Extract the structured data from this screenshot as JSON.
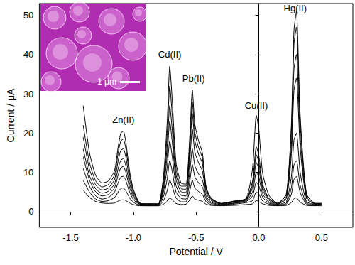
{
  "chart_data": {
    "type": "line",
    "xlabel": "Potential / V",
    "ylabel": "Current / μA",
    "xlim": [
      -1.75,
      0.75
    ],
    "ylim": [
      -4,
      53
    ],
    "xticks": [
      -1.5,
      {
        "value": -1,
        "label": "-1.0"
      },
      -0.5,
      {
        "value": 0,
        "label": "0.0"
      },
      0.5
    ],
    "yticks": [
      0,
      10,
      20,
      30,
      40,
      50
    ],
    "grid": false,
    "marker": "none",
    "line_style": "solid",
    "x": [
      -1.4,
      -1.35,
      -1.3,
      -1.25,
      -1.2,
      -1.15,
      -1.12,
      -1.1,
      -1.08,
      -1.06,
      -1.03,
      -1.0,
      -0.95,
      -0.9,
      -0.85,
      -0.8,
      -0.76,
      -0.73,
      -0.71,
      -0.69,
      -0.66,
      -0.62,
      -0.58,
      -0.55,
      -0.53,
      -0.51,
      -0.48,
      -0.45,
      -0.42,
      -0.38,
      -0.3,
      -0.2,
      -0.1,
      -0.05,
      -0.02,
      0.0,
      0.03,
      0.08,
      0.15,
      0.22,
      0.26,
      0.28,
      0.3,
      0.33,
      0.38,
      0.45,
      0.5
    ],
    "series": [
      {
        "color": "#000000",
        "values": [
          5.5,
          3.6,
          2.6,
          2.2,
          2.1,
          2.2,
          2.7,
          2.95,
          3.0,
          2.8,
          2.2,
          1.8,
          1.5,
          1.5,
          1.5,
          1.5,
          1.9,
          2.7,
          3.5,
          3.0,
          2.1,
          1.8,
          1.9,
          3.0,
          4.0,
          3.2,
          2.9,
          2.6,
          1.9,
          1.6,
          1.5,
          1.6,
          1.8,
          2.0,
          2.8,
          2.6,
          2.0,
          1.6,
          1.5,
          1.6,
          2.3,
          3.3,
          3.5,
          2.4,
          1.6,
          1.5,
          1.5
        ]
      },
      {
        "color": "#000000",
        "values": [
          8,
          5,
          3.2,
          2.6,
          2.8,
          3.6,
          5.1,
          5.9,
          6.0,
          5.3,
          3.5,
          2.4,
          1.6,
          1.5,
          1.5,
          1.5,
          2.8,
          5.4,
          8.0,
          6.4,
          3.5,
          2.5,
          2.5,
          5.4,
          8.0,
          6.0,
          5.1,
          4.4,
          2.5,
          1.8,
          1.6,
          1.9,
          2.3,
          2.8,
          5.0,
          4.5,
          2.7,
          1.9,
          1.6,
          1.9,
          4.5,
          8.2,
          9.0,
          4.9,
          1.9,
          1.6,
          1.6
        ]
      },
      {
        "color": "#000000",
        "values": [
          11,
          6.5,
          4,
          3.2,
          3.6,
          5,
          7.5,
          8.8,
          9,
          7.9,
          5,
          3.1,
          1.8,
          1.6,
          1.6,
          1.6,
          3.9,
          8.4,
          13,
          10.2,
          5,
          3.4,
          3.2,
          7.8,
          12,
          8.9,
          7.3,
          6.3,
          3.2,
          2.1,
          1.7,
          2.1,
          2.6,
          4.0,
          7.5,
          6.6,
          3.7,
          2.2,
          1.7,
          2.2,
          6.2,
          11.9,
          13,
          6.7,
          2.2,
          1.7,
          1.7
        ]
      },
      {
        "color": "#000000",
        "values": [
          14,
          8,
          5,
          4,
          4.4,
          6.1,
          9.5,
          11.2,
          11.5,
          10,
          6.1,
          3.7,
          1.9,
          1.7,
          1.7,
          1.7,
          5,
          11.5,
          18,
          14,
          6.6,
          4.2,
          4,
          10.3,
          16,
          11.7,
          9.6,
          8.1,
          3.9,
          2.4,
          1.8,
          2.2,
          2.8,
          5,
          10,
          8.8,
          4.6,
          2.5,
          1.8,
          2.6,
          9,
          18.2,
          20,
          10,
          2.6,
          1.8,
          1.8
        ]
      },
      {
        "color": "#000000",
        "values": [
          16,
          9.2,
          5.8,
          4.7,
          5.2,
          7.1,
          11.2,
          13.1,
          13.5,
          11.7,
          7.1,
          4.2,
          2.0,
          1.8,
          1.8,
          1.8,
          6,
          14.5,
          23,
          17.7,
          8.2,
          5.1,
          4.9,
          13.3,
          21,
          15.2,
          12.4,
          10.4,
          4.8,
          2.8,
          1.9,
          2.4,
          3.0,
          6.1,
          12.5,
          10.9,
          5.5,
          2.9,
          1.9,
          3.4,
          14.7,
          30.8,
          34,
          16.3,
          3.4,
          1.9,
          1.9
        ]
      },
      {
        "color": "#000000",
        "values": [
          19,
          10.8,
          6.8,
          5.5,
          6,
          8.2,
          13.2,
          15.6,
          16,
          13.9,
          8.2,
          4.8,
          2.1,
          1.9,
          1.9,
          1.9,
          6.9,
          17,
          27,
          20.7,
          9.4,
          5.9,
          5.7,
          15.8,
          25,
          18.1,
          14.6,
          12.3,
          5.6,
          3.1,
          2.0,
          2.5,
          3.1,
          6.9,
          14.5,
          12.6,
          6.3,
          3.2,
          2.0,
          3.8,
          17.1,
          36.2,
          40,
          19.0,
          3.8,
          2.0,
          2.0
        ]
      },
      {
        "color": "#000000",
        "values": [
          22,
          12.5,
          7.8,
          6.3,
          6.9,
          9.4,
          15.2,
          18,
          18.5,
          16,
          9.4,
          5.3,
          2.2,
          2,
          2,
          2,
          8,
          20,
          32,
          24.5,
          11,
          6.5,
          6.5,
          17.6,
          28,
          20.2,
          16.3,
          13.7,
          5.9,
          3.3,
          2.1,
          2.6,
          3.2,
          7.8,
          16.5,
          14.3,
          7.1,
          3.4,
          2.1,
          4.4,
          20.8,
          42.5,
          47,
          22.5,
          4.4,
          2.1,
          2.1
        ]
      },
      {
        "color": "#000000",
        "values": [
          27,
          15,
          9.2,
          7.3,
          7.8,
          10.5,
          16.8,
          20,
          20.5,
          17.7,
          10.3,
          5.7,
          2.2,
          2,
          2,
          2,
          9,
          23,
          37,
          28.3,
          12.5,
          7.3,
          7,
          19.4,
          31,
          22.3,
          18,
          15,
          6.3,
          3.5,
          2.1,
          2.7,
          3.4,
          11,
          24.5,
          21,
          9.9,
          4.2,
          2.1,
          4.6,
          22.4,
          46,
          51,
          24.5,
          4.6,
          2.1,
          2.1
        ]
      }
    ],
    "annotations": [
      {
        "text": "Zn(II)",
        "x": -1.08,
        "y": 23.5
      },
      {
        "text": "Cd(II)",
        "x": -0.71,
        "y": 40
      },
      {
        "text": "Pb(II)",
        "x": -0.52,
        "y": 34
      },
      {
        "text": "Cu(II)",
        "x": -0.02,
        "y": 27
      },
      {
        "text": "Hg(II)",
        "x": 0.29,
        "y": 51.8
      }
    ],
    "inset": {
      "scale_bar": "1 μm",
      "color": "#b02cb0"
    }
  }
}
